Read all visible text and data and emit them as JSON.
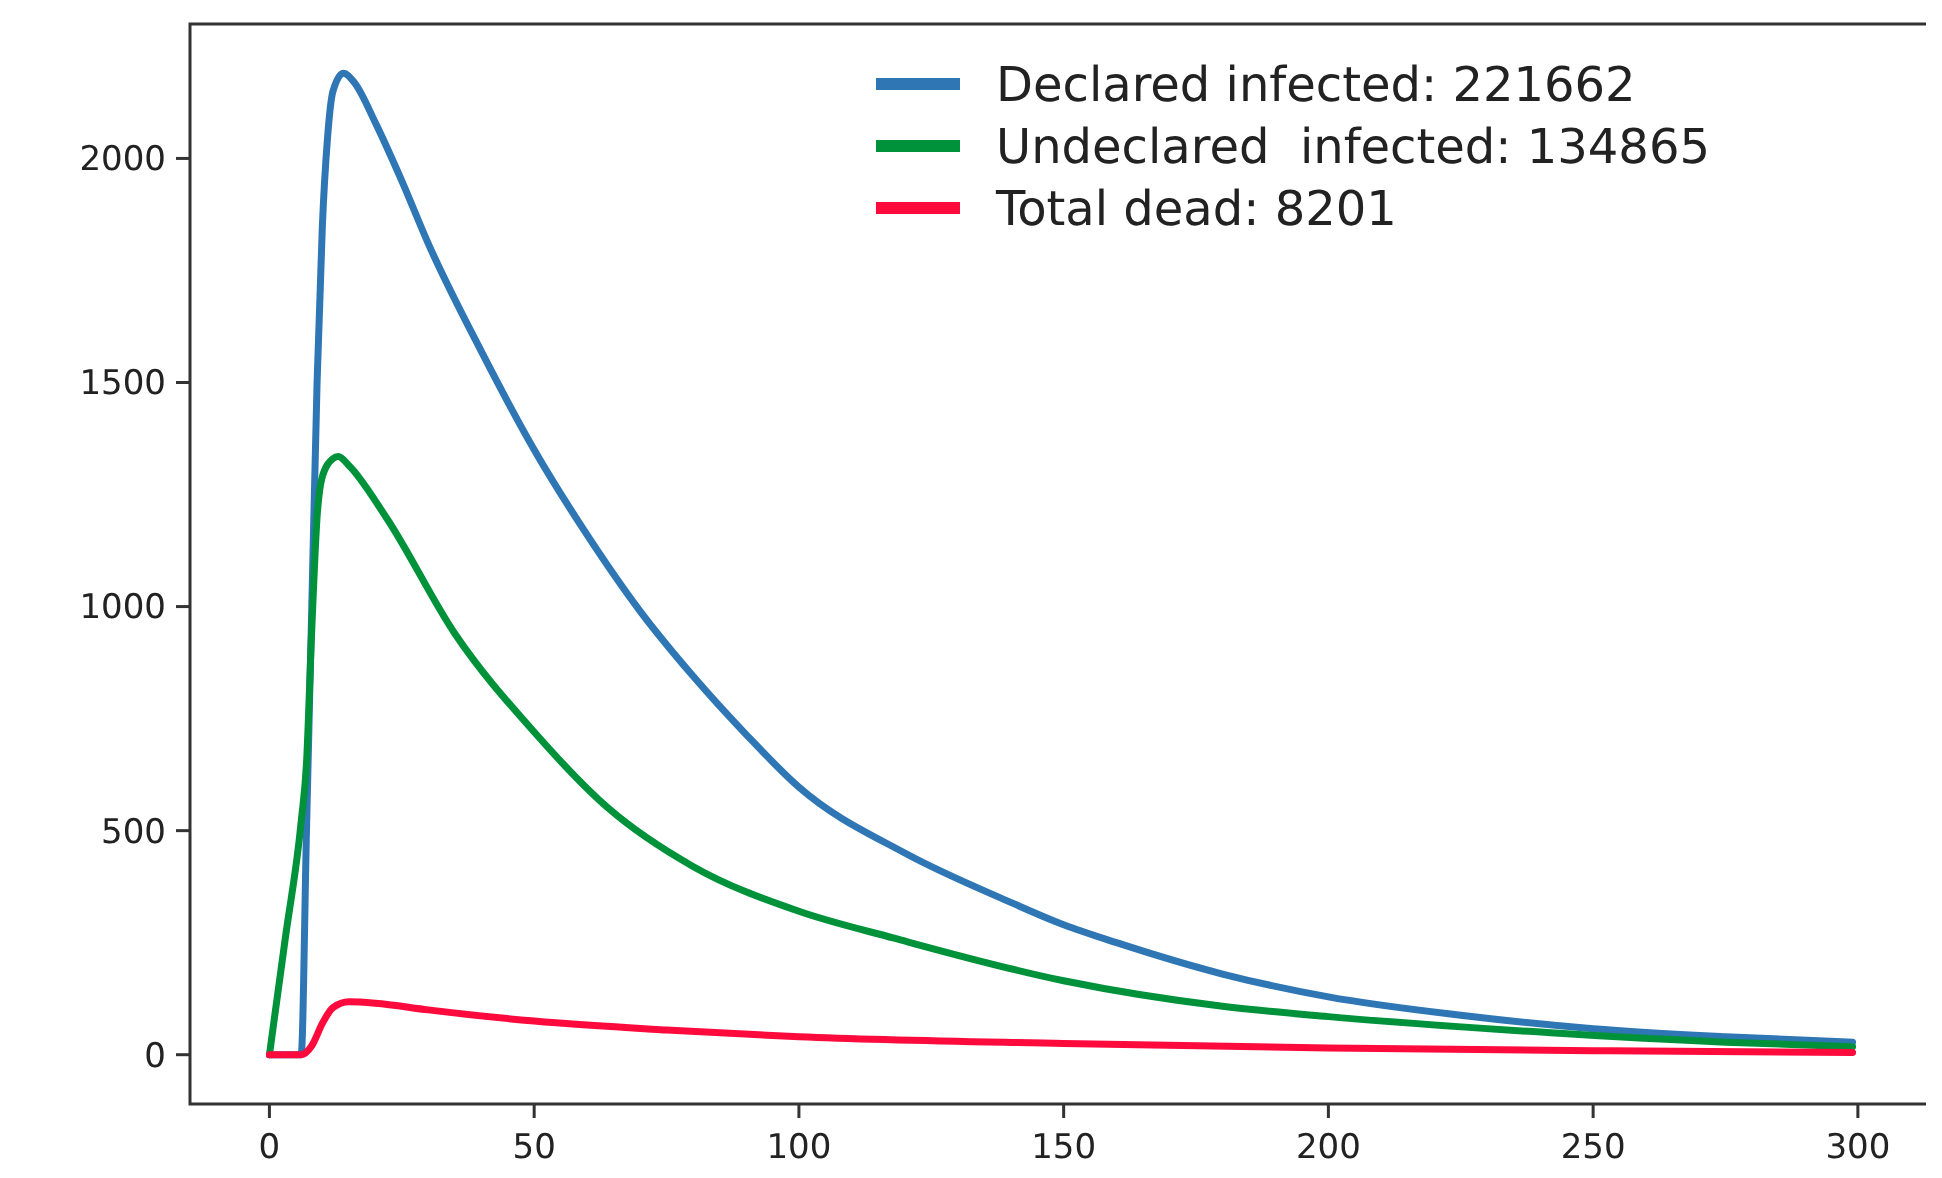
{
  "chart_data": {
    "type": "line",
    "xlim": [
      -15,
      314
    ],
    "ylim": [
      -110,
      2300
    ],
    "xticks": [
      0,
      50,
      100,
      150,
      200,
      250,
      300
    ],
    "yticks": [
      0,
      500,
      1000,
      1500,
      2000
    ],
    "grid": false,
    "legend": "top right",
    "line_style": "solid",
    "marker": "none",
    "series": [
      {
        "name": "Declared infected: 221662",
        "color": "#2f76b5",
        "x": [
          0,
          6,
          7,
          8,
          9,
          10,
          11,
          12,
          14,
          16,
          20,
          25,
          30,
          40,
          50,
          60,
          70,
          80,
          90,
          100,
          120,
          140,
          150,
          160,
          180,
          200,
          225,
          250,
          275,
          299
        ],
        "values": [
          0,
          0,
          500,
          1000,
          1500,
          1850,
          2050,
          2150,
          2190,
          2170,
          2080,
          1950,
          1810,
          1570,
          1350,
          1160,
          990,
          845,
          715,
          597,
          450,
          340,
          290,
          250,
          180,
          129,
          88,
          58,
          40,
          28
        ]
      },
      {
        "name": "Undeclared  infected: 134865",
        "color": "#00923a",
        "x": [
          0,
          3,
          6,
          7,
          8,
          9,
          10,
          12,
          13,
          15,
          22,
          35,
          50,
          64,
          80,
          100,
          118,
          150,
          180,
          200,
          242,
          275,
          299
        ],
        "values": [
          0,
          260,
          520,
          650,
          950,
          1200,
          1290,
          1330,
          1335,
          1315,
          1200,
          940,
          720,
          550,
          420,
          320,
          260,
          165,
          108,
          85,
          49,
          28,
          18
        ]
      },
      {
        "name": "Total dead: 8201",
        "color": "#ff0a3c",
        "x": [
          0,
          6,
          8,
          10,
          12,
          15,
          20,
          30,
          50,
          75,
          100,
          150,
          200,
          250,
          299
        ],
        "values": [
          0,
          0,
          20,
          70,
          105,
          118,
          115,
          100,
          75,
          55,
          40,
          25,
          15,
          9,
          5
        ]
      }
    ]
  }
}
